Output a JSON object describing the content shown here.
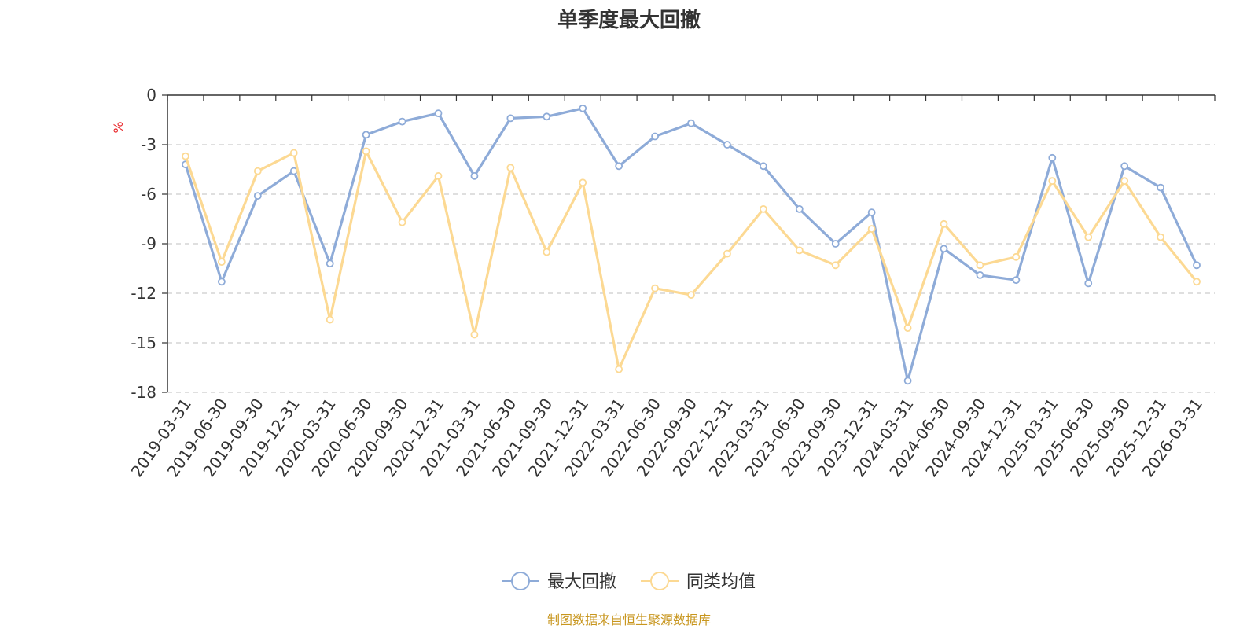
{
  "chart_data": {
    "type": "line",
    "title": "单季度最大回撤",
    "ylabel": "%",
    "ylim": [
      -18,
      0
    ],
    "yticks": [
      0,
      -3,
      -6,
      -9,
      -12,
      -15,
      -18
    ],
    "grid": true,
    "legend_position": "bottom",
    "categories": [
      "2019-03-31",
      "2019-06-30",
      "2019-09-30",
      "2019-12-31",
      "2020-03-31",
      "2020-06-30",
      "2020-09-30",
      "2020-12-31",
      "2021-03-31",
      "2021-06-30",
      "2021-09-30",
      "2021-12-31",
      "2022-03-31",
      "2022-06-30",
      "2022-09-30",
      "2022-12-31",
      "2023-03-31",
      "2023-06-30",
      "2023-09-30",
      "2023-12-31",
      "2024-03-31",
      "2024-06-30",
      "2024-09-30",
      "2024-12-31",
      "2025-03-31",
      "2025-06-30",
      "2025-09-30",
      "2025-12-31",
      "2026-03-31"
    ],
    "series": [
      {
        "name": "最大回撤",
        "color": "#8eabd8",
        "values": [
          -4.2,
          -11.3,
          -6.1,
          -4.6,
          -10.2,
          -2.4,
          -1.6,
          -1.1,
          -4.9,
          -1.4,
          -1.3,
          -0.8,
          -4.3,
          -2.5,
          -1.7,
          -3.0,
          -4.3,
          -6.9,
          -9.0,
          -7.1,
          -17.3,
          -9.3,
          -10.9,
          -11.2,
          -3.8,
          -11.4,
          -4.3,
          -5.6,
          -10.3
        ]
      },
      {
        "name": "同类均值",
        "color": "#fcd993",
        "values": [
          -3.7,
          -10.1,
          -4.6,
          -3.5,
          -13.6,
          -3.4,
          -7.7,
          -4.9,
          -14.5,
          -4.4,
          -9.5,
          -5.3,
          -16.6,
          -11.7,
          -12.1,
          -9.6,
          -6.9,
          -9.4,
          -10.3,
          -8.1,
          -14.1,
          -7.8,
          -10.3,
          -9.8,
          -5.2,
          -8.6,
          -5.2,
          -8.6,
          -11.3
        ]
      }
    ]
  },
  "source_note": "制图数据来自恒生聚源数据库"
}
